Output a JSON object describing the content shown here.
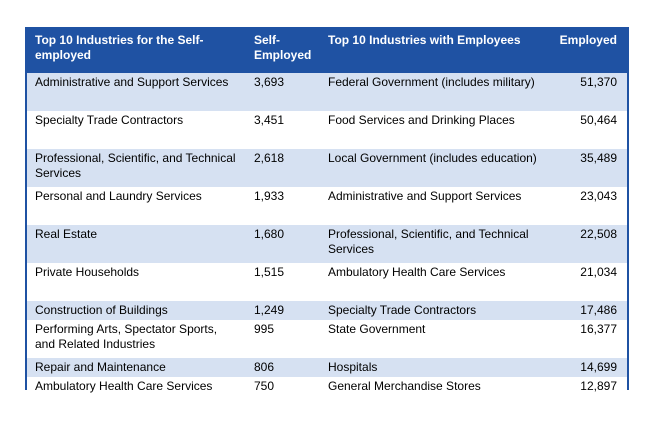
{
  "table": {
    "headers": [
      "Top 10 Industries for the Self-employed",
      "Self-Employed",
      "Top 10 Industries with Employees",
      "Employed"
    ],
    "rows": [
      [
        "Administrative and Support Services",
        "3,693",
        "Federal Government (includes military)",
        "51,370"
      ],
      [
        "Specialty Trade Contractors",
        "3,451",
        "Food Services and Drinking Places",
        "50,464"
      ],
      [
        "Professional, Scientific, and Technical Services",
        "2,618",
        "Local Government (includes education)",
        "35,489"
      ],
      [
        "Personal and Laundry Services",
        "1,933",
        "Administrative and Support Services",
        "23,043"
      ],
      [
        "Real Estate",
        "1,680",
        "Professional, Scientific, and Technical Services",
        "22,508"
      ],
      [
        "Private Households",
        "1,515",
        "Ambulatory Health Care Services",
        "21,034"
      ],
      [
        "Construction of Buildings",
        "1,249",
        "Specialty Trade Contractors",
        "17,486"
      ],
      [
        "Performing Arts, Spectator Sports, and Related Industries",
        "995",
        "State Government",
        "16,377"
      ],
      [
        "Repair and Maintenance",
        "806",
        "Hospitals",
        "14,699"
      ],
      [
        "Ambulatory Health Care Services",
        "750",
        "General Merchandise Stores",
        "12,897"
      ]
    ],
    "colors": {
      "header_bg": "#1f52a3",
      "header_text": "#ffffff",
      "stripe_bg": "#d6e1f2",
      "border": "#1f52a3"
    }
  }
}
